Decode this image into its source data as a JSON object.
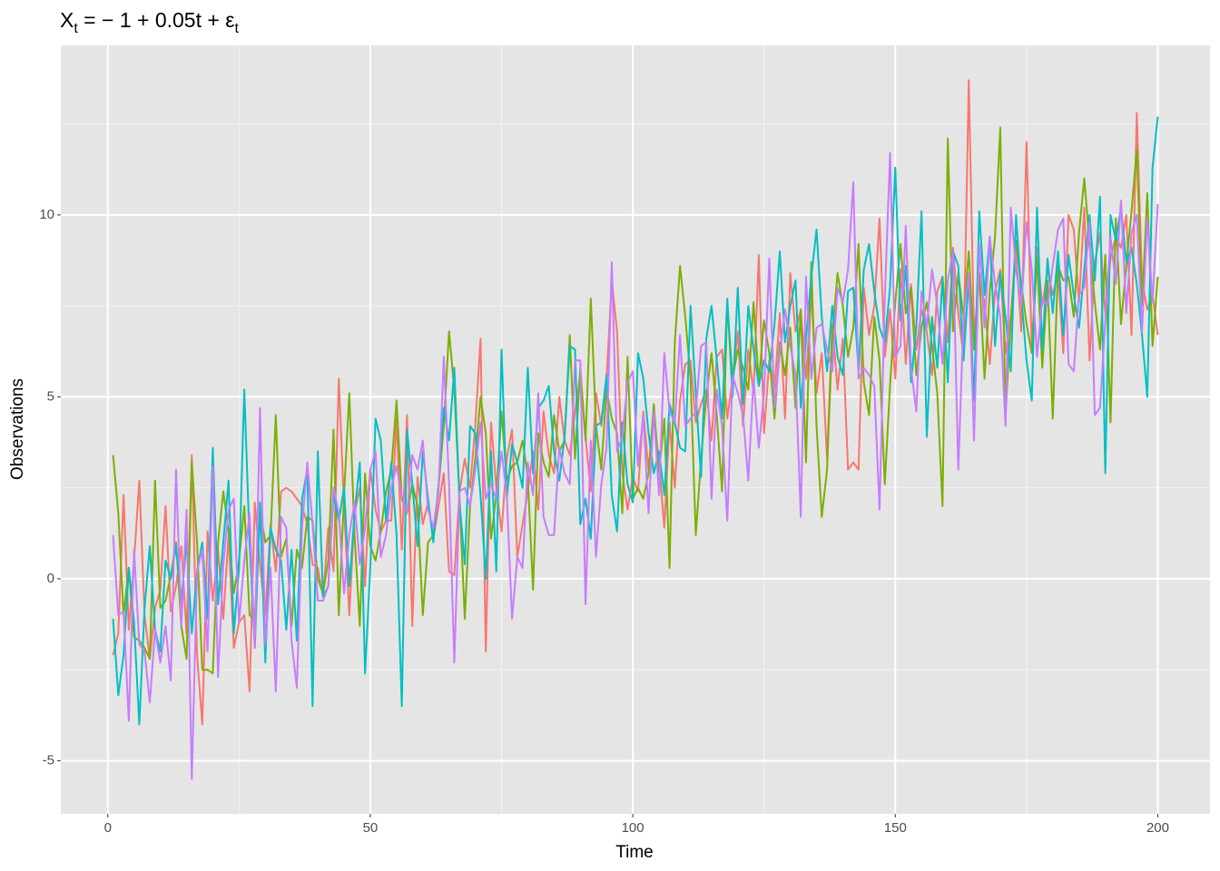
{
  "chart_data": {
    "type": "line",
    "title": [
      "X",
      "t",
      " = − 1 + 0.05t + ε",
      "t"
    ],
    "x_label": "Time",
    "y_label": "Observations",
    "xlim": [
      -8.95,
      209.95
    ],
    "ylim": [
      -6.46,
      14.66
    ],
    "xticks": [
      0,
      50,
      100,
      150,
      200
    ],
    "x_minor_ticks": [
      25,
      75,
      125,
      175
    ],
    "yticks": [
      -5,
      0,
      5,
      10
    ],
    "y_minor_ticks": [
      -2.5,
      2.5,
      7.5,
      12.5
    ],
    "grid": true,
    "x": [
      1,
      2,
      3,
      4,
      5,
      6,
      7,
      8,
      9,
      10,
      11,
      12,
      13,
      14,
      15,
      16,
      17,
      18,
      19,
      20,
      21,
      22,
      23,
      24,
      25,
      26,
      27,
      28,
      29,
      30,
      31,
      32,
      33,
      34,
      35,
      36,
      37,
      38,
      39,
      40,
      41,
      42,
      43,
      44,
      45,
      46,
      47,
      48,
      49,
      50,
      51,
      52,
      53,
      54,
      55,
      56,
      57,
      58,
      59,
      60,
      61,
      62,
      63,
      64,
      65,
      66,
      67,
      68,
      69,
      70,
      71,
      72,
      73,
      74,
      75,
      76,
      77,
      78,
      79,
      80,
      81,
      82,
      83,
      84,
      85,
      86,
      87,
      88,
      89,
      90,
      91,
      92,
      93,
      94,
      95,
      96,
      97,
      98,
      99,
      100,
      101,
      102,
      103,
      104,
      105,
      106,
      107,
      108,
      109,
      110,
      111,
      112,
      113,
      114,
      115,
      116,
      117,
      118,
      119,
      120,
      121,
      122,
      123,
      124,
      125,
      126,
      127,
      128,
      129,
      130,
      131,
      132,
      133,
      134,
      135,
      136,
      137,
      138,
      139,
      140,
      141,
      142,
      143,
      144,
      145,
      146,
      147,
      148,
      149,
      150,
      151,
      152,
      153,
      154,
      155,
      156,
      157,
      158,
      159,
      160,
      161,
      162,
      163,
      164,
      165,
      166,
      167,
      168,
      169,
      170,
      171,
      172,
      173,
      174,
      175,
      176,
      177,
      178,
      179,
      180,
      181,
      182,
      183,
      184,
      185,
      186,
      187,
      188,
      189,
      190,
      191,
      192,
      193,
      194,
      195,
      196,
      197,
      198,
      199,
      200
    ],
    "series": [
      {
        "color": "#F8766D",
        "values": [
          -2.1,
          -1.5,
          2.3,
          -1.4,
          0.5,
          2.7,
          -1.0,
          -2.2,
          -0.8,
          -0.3,
          2.0,
          -0.9,
          -0.2,
          0.9,
          -1.5,
          3.4,
          -2.1,
          -4.0,
          1.3,
          -0.6,
          0.8,
          -1.1,
          1.2,
          -1.9,
          -1.2,
          -1.0,
          -3.1,
          2.1,
          0.4,
          -1.0,
          1.5,
          0.2,
          2.4,
          2.5,
          2.4,
          2.2,
          2.0,
          1.5,
          0.4,
          0.3,
          -0.5,
          1.4,
          0.2,
          5.5,
          2.0,
          -1.0,
          1.8,
          2.5,
          -0.2,
          3.0,
          1.9,
          1.3,
          1.6,
          1.6,
          4.4,
          0.8,
          4.5,
          -1.3,
          2.8,
          1.5,
          2.1,
          1.1,
          2.0,
          2.9,
          0.2,
          0.1,
          2.4,
          3.3,
          2.5,
          4.2,
          6.6,
          -2.0,
          4.3,
          2.5,
          1.3,
          3.3,
          4.1,
          0.6,
          1.5,
          2.4,
          3.5,
          1.9,
          4.6,
          3.4,
          2.9,
          5.0,
          3.8,
          3.4,
          4.6,
          5.6,
          3.9,
          2.4,
          5.1,
          4.2,
          5.5,
          8.2,
          6.8,
          2.9,
          1.9,
          2.8,
          2.4,
          4.6,
          3.0,
          4.5,
          3.2,
          1.4,
          4.3,
          2.5,
          4.9,
          5.9,
          6.0,
          4.3,
          4.8,
          5.2,
          3.8,
          6.1,
          6.3,
          4.4,
          5.5,
          6.8,
          4.2,
          6.3,
          5.1,
          8.9,
          4.0,
          6.0,
          5.2,
          7.3,
          4.4,
          8.4,
          6.8,
          7.4,
          5.5,
          7.9,
          5.1,
          6.2,
          3.3,
          7.0,
          5.2,
          6.6,
          3.0,
          3.2,
          3.0,
          8.0,
          6.7,
          7.5,
          9.9,
          6.1,
          7.4,
          5.5,
          8.5,
          5.9,
          8.1,
          6.3,
          7.4,
          6.8,
          5.6,
          7.9,
          8.3,
          6.5,
          9.1,
          7.3,
          6.1,
          13.7,
          6.7,
          8.2,
          7.6,
          5.9,
          7.9,
          8.5,
          6.2,
          7.2,
          9.0,
          6.8,
          12.0,
          6.3,
          9.1,
          7.5,
          8.5,
          7.8,
          8.4,
          6.2,
          10.0,
          9.6,
          7.6,
          10.2,
          6.0,
          8.7,
          9.5,
          7.3,
          8.8,
          9.4,
          9.1,
          10.0,
          6.7,
          12.8,
          8.2,
          7.4,
          7.8,
          6.7
        ]
      },
      {
        "color": "#7CAE00",
        "values": [
          3.4,
          1.8,
          -1.0,
          0.3,
          -1.6,
          -1.7,
          -1.9,
          -2.2,
          2.7,
          -0.8,
          -0.6,
          0.1,
          1.0,
          -1.3,
          -2.2,
          3.2,
          1.0,
          -2.5,
          -2.5,
          -2.6,
          1.0,
          2.4,
          1.3,
          -0.4,
          0.5,
          2.0,
          -1.0,
          -1.1,
          1.9,
          1.0,
          1.2,
          4.5,
          0.6,
          1.1,
          -1.3,
          0.8,
          0.3,
          1.7,
          1.6,
          0.0,
          -0.4,
          0.5,
          4.1,
          -1.0,
          2.3,
          5.1,
          1.2,
          -1.3,
          2.9,
          0.9,
          0.5,
          1.3,
          2.4,
          3.0,
          4.9,
          2.2,
          1.8,
          2.6,
          2.0,
          -1.0,
          1.0,
          1.2,
          2.5,
          4.2,
          6.8,
          5.2,
          2.2,
          -1.1,
          2.0,
          3.3,
          5.0,
          4.0,
          1.1,
          2.3,
          4.6,
          2.7,
          3.1,
          3.2,
          3.8,
          2.8,
          -0.3,
          4.0,
          3.2,
          2.8,
          4.5,
          3.5,
          3.8,
          6.7,
          3.3,
          5.8,
          3.8,
          7.7,
          4.2,
          3.0,
          5.2,
          4.4,
          4.0,
          1.8,
          6.1,
          2.2,
          2.5,
          2.2,
          2.9,
          4.8,
          2.9,
          4.4,
          0.3,
          6.5,
          8.6,
          7.2,
          5.5,
          1.2,
          3.3,
          5.0,
          6.2,
          4.5,
          2.4,
          7.6,
          5.5,
          6.3,
          5.8,
          5.2,
          7.6,
          5.4,
          7.1,
          6.2,
          4.4,
          6.5,
          5.6,
          6.9,
          4.7,
          7.4,
          3.2,
          8.7,
          4.2,
          1.7,
          3.0,
          6.7,
          8.4,
          7.5,
          6.1,
          6.9,
          9.2,
          5.4,
          4.5,
          7.2,
          6.0,
          2.6,
          5.3,
          7.6,
          9.2,
          7.3,
          8.0,
          5.6,
          6.9,
          7.6,
          6.4,
          5.1,
          2.0,
          12.1,
          6.8,
          8.4,
          7.2,
          9.0,
          6.3,
          8.4,
          5.5,
          7.9,
          9.4,
          12.4,
          4.5,
          7.1,
          9.3,
          8.1,
          7.0,
          6.2,
          8.8,
          5.8,
          8.2,
          4.4,
          8.6,
          8.2,
          8.3,
          7.2,
          9.5,
          11.0,
          9.2,
          7.6,
          6.3,
          8.9,
          4.3,
          9.9,
          7.0,
          8.6,
          10.1,
          11.8,
          7.5,
          10.6,
          6.4,
          8.3
        ]
      },
      {
        "color": "#00BFC4",
        "values": [
          -1.1,
          -3.2,
          -2.1,
          0.3,
          -1.2,
          -4.0,
          -0.8,
          0.9,
          -1.4,
          -2.0,
          0.5,
          0.0,
          0.9,
          -0.6,
          1.0,
          -1.5,
          0.2,
          1.0,
          -1.1,
          3.6,
          -0.7,
          1.0,
          2.7,
          -1.5,
          0.3,
          5.2,
          1.0,
          -1.9,
          2.1,
          -2.3,
          1.4,
          0.8,
          0.5,
          -1.4,
          0.8,
          -1.7,
          2.2,
          3.0,
          -3.5,
          3.5,
          -0.5,
          -0.2,
          2.3,
          1.6,
          2.5,
          -0.2,
          1.8,
          3.2,
          -2.6,
          0.3,
          4.4,
          3.8,
          1.6,
          3.2,
          1.2,
          -3.5,
          4.1,
          2.6,
          0.9,
          3.5,
          2.2,
          1.0,
          2.6,
          4.7,
          3.8,
          5.8,
          2.1,
          0.4,
          4.2,
          4.0,
          2.3,
          0.0,
          3.5,
          0.2,
          6.3,
          2.2,
          3.7,
          3.2,
          2.5,
          5.8,
          2.9,
          4.7,
          4.9,
          5.3,
          3.5,
          2.7,
          3.9,
          6.4,
          6.3,
          1.5,
          2.2,
          1.1,
          4.2,
          4.3,
          5.6,
          2.3,
          1.3,
          4.3,
          2.6,
          2.1,
          6.2,
          5.5,
          4.0,
          2.9,
          3.5,
          2.3,
          4.8,
          4.3,
          3.6,
          3.5,
          7.5,
          5.1,
          2.8,
          6.6,
          7.5,
          6.0,
          4.4,
          7.7,
          5.0,
          8.0,
          4.8,
          7.5,
          6.3,
          5.3,
          6.0,
          5.7,
          7.0,
          9.0,
          6.5,
          7.5,
          8.2,
          4.7,
          6.6,
          8.3,
          9.6,
          7.2,
          5.7,
          7.5,
          6.1,
          5.6,
          7.9,
          8.0,
          5.7,
          8.5,
          9.2,
          7.9,
          6.9,
          6.5,
          8.0,
          11.3,
          7.1,
          8.6,
          5.4,
          6.9,
          10.1,
          3.9,
          7.2,
          5.8,
          8.3,
          5.4,
          9.0,
          8.6,
          6.0,
          8.3,
          4.9,
          10.1,
          7.8,
          9.4,
          6.4,
          8.4,
          7.2,
          5.7,
          10.0,
          7.8,
          6.0,
          4.9,
          10.2,
          6.3,
          8.8,
          7.3,
          9.0,
          6.7,
          8.9,
          7.8,
          6.9,
          8.5,
          10.0,
          8.2,
          10.5,
          2.9,
          10.0,
          9.3,
          10.2,
          8.7,
          9.1,
          8.1,
          6.7,
          5.0,
          11.3,
          12.7
        ]
      },
      {
        "color": "#C77CFF",
        "values": [
          1.2,
          -1.0,
          -0.9,
          -3.9,
          0.8,
          -1.8,
          -2.0,
          -3.4,
          -1.4,
          -2.3,
          -1.3,
          -2.8,
          3.0,
          -1.3,
          1.9,
          -5.5,
          0.2,
          0.8,
          -2.0,
          3.1,
          -2.7,
          0.4,
          1.9,
          2.2,
          -1.2,
          0.5,
          1.8,
          -1.9,
          4.7,
          -1.8,
          0.3,
          -3.1,
          1.7,
          1.4,
          -1.7,
          -3.0,
          1.4,
          3.2,
          1.5,
          -0.6,
          -0.6,
          -0.2,
          2.5,
          1.8,
          -0.4,
          1.2,
          2.1,
          0.4,
          1.4,
          3.0,
          3.5,
          0.6,
          1.2,
          2.5,
          3.1,
          2.3,
          1.8,
          3.4,
          3.0,
          3.8,
          1.9,
          1.4,
          2.4,
          6.1,
          2.6,
          -2.3,
          2.4,
          2.5,
          2.0,
          3.0,
          4.3,
          2.2,
          2.6,
          2.2,
          3.5,
          2.3,
          -1.1,
          0.6,
          0.3,
          3.2,
          2.3,
          5.1,
          1.7,
          1.2,
          1.2,
          3.6,
          2.9,
          2.6,
          6.0,
          6.0,
          -0.7,
          3.8,
          0.6,
          2.6,
          3.6,
          8.7,
          3.5,
          3.9,
          5.4,
          5.7,
          3.1,
          4.5,
          1.8,
          4.6,
          2.3,
          6.2,
          4.6,
          4.3,
          6.7,
          4.2,
          4.4,
          4.6,
          6.4,
          6.5,
          2.2,
          5.2,
          4.2,
          1.6,
          5.6,
          5.1,
          4.5,
          2.7,
          5.5,
          3.6,
          5.1,
          8.8,
          4.7,
          6.2,
          7.4,
          6.4,
          5.6,
          1.7,
          8.3,
          5.5,
          6.9,
          7.0,
          6.3,
          5.7,
          8.0,
          7.6,
          8.5,
          10.9,
          5.5,
          5.8,
          5.6,
          5.3,
          1.9,
          7.7,
          11.7,
          6.1,
          6.4,
          9.7,
          5.8,
          4.6,
          7.9,
          6.9,
          8.5,
          7.5,
          5.9,
          8.2,
          9.0,
          3.0,
          7.2,
          8.4,
          3.8,
          9.2,
          6.9,
          9.4,
          8.1,
          7.2,
          4.2,
          10.2,
          8.5,
          7.5,
          9.8,
          8.5,
          6.1,
          7.7,
          7.5,
          8.6,
          9.6,
          9.9,
          5.9,
          5.7,
          7.8,
          8.0,
          9.8,
          4.5,
          4.7,
          7.1,
          9.4,
          8.1,
          10.4,
          7.3,
          9.5,
          10.0,
          6.8,
          9.9,
          7.6,
          10.3
        ]
      }
    ]
  }
}
